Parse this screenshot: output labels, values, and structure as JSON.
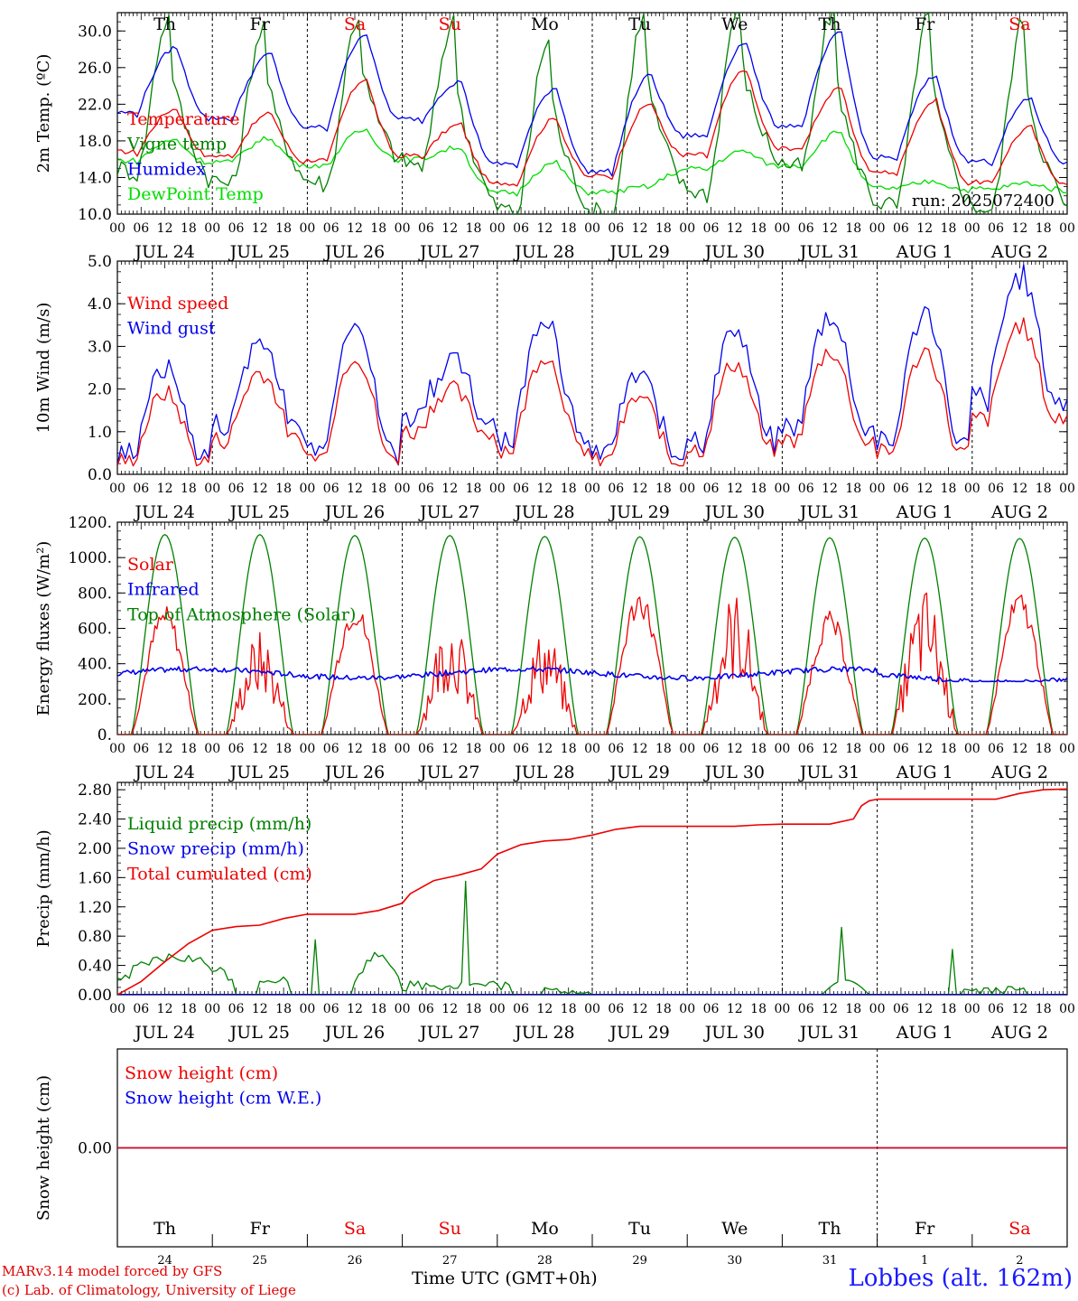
{
  "colors": {
    "red": "#ee0000",
    "darkgreen": "#008000",
    "blue": "#0000ee",
    "lightgreen": "#00dd00",
    "weekend": "#ee0000",
    "weekday": "#000000"
  },
  "footer": {
    "credit_line1": "MARv3.14 model forced by GFS",
    "credit_line2": "(c) Lab. of Climatology, University of Liege",
    "x_title": "Time UTC (GMT+0h)",
    "station": "Lobbes (alt. 162m)"
  },
  "chart_data": {
    "type": "line",
    "x_hour_ticks": [
      "00",
      "06",
      "12",
      "18"
    ],
    "x_end_tick": "00",
    "date_labels": [
      "JUL 24",
      "JUL 25",
      "JUL 26",
      "JUL 27",
      "JUL 28",
      "JUL 29",
      "JUL 30",
      "JUL 31",
      "AUG 1",
      "AUG 2"
    ],
    "day_labels": [
      "Th",
      "Fr",
      "Sa",
      "Su",
      "Mo",
      "Tu",
      "We",
      "Th",
      "Fr",
      "Sa"
    ],
    "weekend_days": [
      false,
      false,
      true,
      true,
      false,
      false,
      false,
      false,
      false,
      true
    ],
    "day_numbers": [
      "24",
      "25",
      "26",
      "27",
      "28",
      "29",
      "30",
      "31",
      "1",
      "2"
    ],
    "panels": [
      {
        "id": "temp",
        "ylabel": "2m Temp. (ºC)",
        "ylim": [
          10,
          32
        ],
        "yticks": [
          "10.0",
          "14.0",
          "18.0",
          "22.0",
          "26.0",
          "30.0"
        ],
        "annotation": "run: 2025072400",
        "series": [
          {
            "name": "Temperature",
            "color": "red",
            "model": "temp",
            "mn": [
              16.5,
              16.1,
              15.6,
              16.1,
              13.1,
              13.9,
              16.2,
              16.9,
              14.3,
              13.2
            ],
            "mx": [
              21.5,
              21.0,
              24.8,
              19.8,
              20.5,
              22.1,
              25.8,
              23.7,
              22.4,
              19.5
            ]
          },
          {
            "name": "Vigne temp",
            "color": "darkgreen",
            "model": "vigne",
            "mn": [
              14.5,
              13.2,
              13.2,
              15.2,
              10.2,
              9.8,
              12.2,
              15.0,
              10.8,
              10.4
            ],
            "mx": [
              31.5,
              30.5,
              31.5,
              31.0,
              29.0,
              31.5,
              32.5,
              32.0,
              31.5,
              31.0
            ]
          },
          {
            "name": "Humidex",
            "color": "blue",
            "model": "temp",
            "mn": [
              20.8,
              20.2,
              19.2,
              20.1,
              15.2,
              14.4,
              18.3,
              19.4,
              15.9,
              15.5
            ],
            "mx": [
              28.2,
              27.5,
              29.7,
              24.5,
              23.8,
              25.2,
              28.8,
              29.8,
              25.1,
              22.6
            ]
          },
          {
            "name": "DewPoint Temp",
            "color": "lightgreen",
            "model": "dew",
            "mn": [
              15.7,
              15.6,
              15.2,
              15.9,
              12.2,
              12.3,
              14.8,
              15.2,
              12.7,
              12.6
            ],
            "mx": [
              18.1,
              18.3,
              19.2,
              17.3,
              15.6,
              13.0,
              16.9,
              19.0,
              13.6,
              13.4
            ]
          }
        ]
      },
      {
        "id": "wind",
        "ylabel": "10m Wind (m/s)",
        "ylim": [
          0,
          5
        ],
        "yticks": [
          "0.0",
          "1.0",
          "2.0",
          "3.0",
          "4.0",
          "5.0"
        ],
        "series": [
          {
            "name": "Wind speed",
            "color": "red",
            "daily_max": [
              1.9,
              2.4,
              2.8,
              2.0,
              2.8,
              1.8,
              2.6,
              2.9,
              2.9,
              3.5
            ],
            "daily_min": [
              0.3,
              0.8,
              0.4,
              1.0,
              0.6,
              0.3,
              0.6,
              0.8,
              0.5,
              1.3
            ]
          },
          {
            "name": "Wind gust",
            "color": "blue",
            "daily_max": [
              2.5,
              3.1,
              3.6,
              2.6,
              3.7,
              2.3,
              3.4,
              3.7,
              3.8,
              4.6
            ],
            "daily_min": [
              0.4,
              0.9,
              0.5,
              1.2,
              0.7,
              0.3,
              0.7,
              1.0,
              0.6,
              1.6
            ]
          }
        ]
      },
      {
        "id": "energy",
        "ylabel": "Energy fluxes (W/m²)",
        "ylim": [
          0,
          1200
        ],
        "yticks": [
          "0.",
          "200.",
          "400.",
          "600.",
          "800.",
          "1000.",
          "1200."
        ],
        "series": [
          {
            "name": "Solar",
            "color": "red",
            "daily_peak": [
              730,
              590,
              760,
              690,
              600,
              830,
              820,
              700,
              840,
              810
            ]
          },
          {
            "name": "Infrared",
            "color": "blue",
            "range": [
              300,
              410
            ]
          },
          {
            "name": "Top of Atmosphere (Solar)",
            "color": "darkgreen",
            "daily_peak": [
              1130,
              1130,
              1125,
              1125,
              1120,
              1118,
              1115,
              1112,
              1110,
              1108
            ]
          }
        ]
      },
      {
        "id": "precip",
        "ylabel": "Precip (mm/h)",
        "ylim": [
          0,
          2.9
        ],
        "yticks": [
          "0.00",
          "0.40",
          "0.80",
          "1.20",
          "1.60",
          "2.00",
          "2.40",
          "2.80"
        ],
        "series": [
          {
            "name": "Liquid precip (mm/h)",
            "color": "darkgreen"
          },
          {
            "name": "Snow precip (mm/h)",
            "color": "blue",
            "constant": 0
          },
          {
            "name": "Total cumulated (cm)",
            "color": "red",
            "x": [
              0,
              6,
              12,
              18,
              24,
              30,
              36,
              42,
              48,
              54,
              60,
              66,
              72,
              74,
              80,
              86,
              92,
              96,
              102,
              108,
              114,
              120,
              126,
              132,
              138,
              144,
              150,
              156,
              162,
              168,
              174,
              180,
              186,
              188,
              190,
              192,
              198,
              204,
              210,
              216,
              222,
              228,
              234,
              240
            ],
            "y": [
              0.0,
              0.18,
              0.45,
              0.7,
              0.88,
              0.93,
              0.95,
              1.04,
              1.1,
              1.1,
              1.1,
              1.15,
              1.25,
              1.38,
              1.56,
              1.63,
              1.72,
              1.92,
              2.05,
              2.1,
              2.12,
              2.18,
              2.26,
              2.3,
              2.3,
              2.3,
              2.3,
              2.3,
              2.32,
              2.33,
              2.33,
              2.33,
              2.4,
              2.58,
              2.65,
              2.67,
              2.67,
              2.67,
              2.67,
              2.67,
              2.67,
              2.75,
              2.8,
              2.81
            ]
          }
        ]
      },
      {
        "id": "snow",
        "ylabel": "Snow height (cm)",
        "ylim": [
          -1,
          1
        ],
        "yticks": [
          "0.00"
        ],
        "series": [
          {
            "name": "Snow height (cm)",
            "color": "red",
            "constant": 0
          },
          {
            "name": "Snow height (cm W.E.)",
            "color": "blue",
            "constant": 0
          }
        ]
      }
    ]
  }
}
